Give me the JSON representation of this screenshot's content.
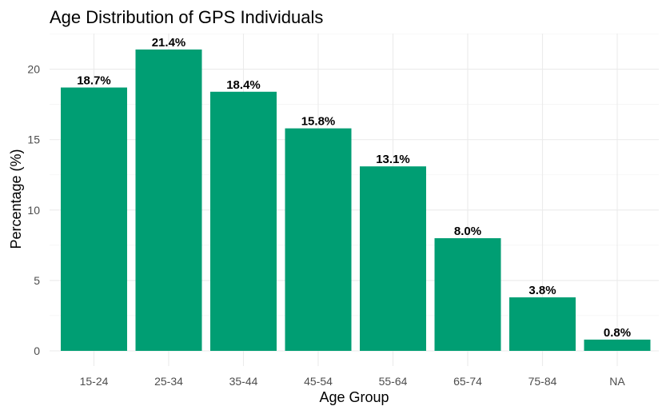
{
  "chart_data": {
    "type": "bar",
    "title": "Age Distribution of GPS Individuals",
    "xlabel": "Age Group",
    "ylabel": "Percentage (%)",
    "categories": [
      "15-24",
      "25-34",
      "35-44",
      "45-54",
      "55-64",
      "65-74",
      "75-84",
      "NA"
    ],
    "values": [
      18.7,
      21.4,
      18.4,
      15.8,
      13.1,
      8.0,
      3.8,
      0.8
    ],
    "data_labels": [
      "18.7%",
      "21.4%",
      "18.4%",
      "15.8%",
      "13.1%",
      "8.0%",
      "3.8%",
      "0.8%"
    ],
    "y_ticks": [
      0,
      5,
      10,
      15,
      20
    ],
    "ylim": [
      0,
      22.47
    ],
    "grid": true,
    "bar_color": "#009E73"
  }
}
